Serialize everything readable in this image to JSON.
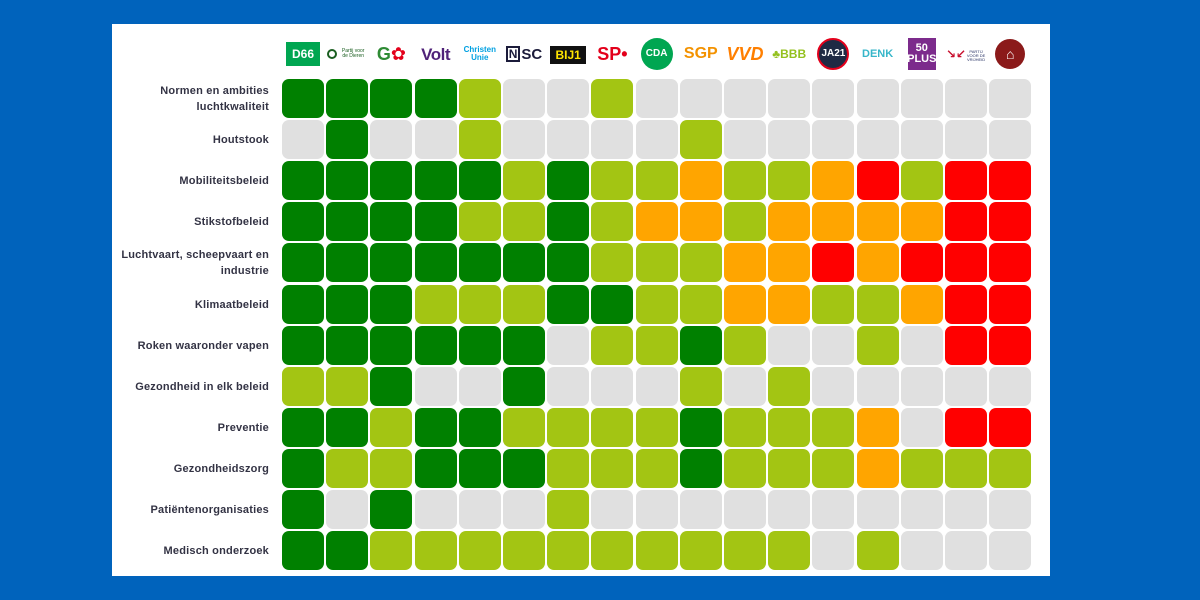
{
  "colors": {
    "background": "#0063bc",
    "panel": "#ffffff",
    "scale": {
      "0": "#e0e0e0",
      "1": "#008000",
      "2": "#a3c513",
      "3": "#ffa500",
      "4": "#ff0000"
    }
  },
  "chart_data": {
    "type": "heatmap",
    "score_legend": {
      "0": "light gray",
      "1": "dark green",
      "2": "light green",
      "3": "orange",
      "4": "red"
    },
    "parties": [
      {
        "name": "D66",
        "icon": "d66-logo",
        "text": "D66"
      },
      {
        "name": "Partij voor de Dieren",
        "icon": "pvdd-logo",
        "text": "Partij voor de Dieren"
      },
      {
        "name": "GroenLinks-PvdA",
        "icon": "groenlinks-pvda-logo",
        "text": "G"
      },
      {
        "name": "Volt",
        "icon": "volt-logo",
        "text": "Volt"
      },
      {
        "name": "ChristenUnie",
        "icon": "christenunie-logo",
        "text": "Christen\nUnie"
      },
      {
        "name": "NSC",
        "icon": "nsc-logo",
        "text": "SC"
      },
      {
        "name": "BIJ1",
        "icon": "bij1-logo",
        "text": "BIJ1"
      },
      {
        "name": "SP",
        "icon": "sp-logo",
        "text": "SP"
      },
      {
        "name": "CDA",
        "icon": "cda-logo",
        "text": "CDA"
      },
      {
        "name": "SGP",
        "icon": "sgp-logo",
        "text": "SGP"
      },
      {
        "name": "VVD",
        "icon": "vvd-logo",
        "text": "VVD"
      },
      {
        "name": "BBB",
        "icon": "bbb-logo",
        "text": "BBB"
      },
      {
        "name": "JA21",
        "icon": "ja21-logo",
        "text": "JA21"
      },
      {
        "name": "DENK",
        "icon": "denk-logo",
        "text": "DENK"
      },
      {
        "name": "50PLUS",
        "icon": "50plus-logo",
        "text": "50\nPLUS"
      },
      {
        "name": "PVV",
        "icon": "pvv-logo",
        "text": "PARTIJ VOOR DE\nVRIJHEID"
      },
      {
        "name": "FvD",
        "icon": "fvd-logo",
        "text": "⌂"
      }
    ],
    "rows": [
      {
        "label": "Normen en ambities\nluchtkwaliteit",
        "values": [
          1,
          1,
          1,
          1,
          2,
          0,
          0,
          2,
          0,
          0,
          0,
          0,
          0,
          0,
          0,
          0,
          0
        ]
      },
      {
        "label": "Houtstook",
        "values": [
          0,
          1,
          0,
          0,
          2,
          0,
          0,
          0,
          0,
          2,
          0,
          0,
          0,
          0,
          0,
          0,
          0
        ]
      },
      {
        "label": "Mobiliteitsbeleid",
        "values": [
          1,
          1,
          1,
          1,
          1,
          2,
          1,
          2,
          2,
          3,
          2,
          2,
          3,
          4,
          2,
          4,
          4
        ]
      },
      {
        "label": "Stikstofbeleid",
        "values": [
          1,
          1,
          1,
          1,
          2,
          2,
          1,
          2,
          3,
          3,
          2,
          3,
          3,
          3,
          3,
          4,
          4
        ]
      },
      {
        "label": "Luchtvaart, scheepvaart en\nindustrie",
        "values": [
          1,
          1,
          1,
          1,
          1,
          1,
          1,
          2,
          2,
          2,
          3,
          3,
          4,
          3,
          4,
          4,
          4
        ]
      },
      {
        "label": "Klimaatbeleid",
        "values": [
          1,
          1,
          1,
          2,
          2,
          2,
          1,
          1,
          2,
          2,
          3,
          3,
          2,
          2,
          3,
          4,
          4
        ]
      },
      {
        "label": "Roken waaronder vapen",
        "values": [
          1,
          1,
          1,
          1,
          1,
          1,
          0,
          2,
          2,
          1,
          2,
          0,
          0,
          2,
          0,
          4,
          4
        ]
      },
      {
        "label": "Gezondheid in elk beleid",
        "values": [
          2,
          2,
          1,
          0,
          0,
          1,
          0,
          0,
          0,
          2,
          0,
          2,
          0,
          0,
          0,
          0,
          0
        ]
      },
      {
        "label": "Preventie",
        "values": [
          1,
          1,
          2,
          1,
          1,
          2,
          2,
          2,
          2,
          1,
          2,
          2,
          2,
          3,
          0,
          4,
          4
        ]
      },
      {
        "label": "Gezondheidszorg",
        "values": [
          1,
          2,
          2,
          1,
          1,
          1,
          2,
          2,
          2,
          1,
          2,
          2,
          2,
          3,
          2,
          2,
          2
        ]
      },
      {
        "label": "Patiëntenorganisaties",
        "values": [
          1,
          0,
          1,
          0,
          0,
          0,
          2,
          0,
          0,
          0,
          0,
          0,
          0,
          0,
          0,
          0,
          0
        ]
      },
      {
        "label": "Medisch onderzoek",
        "values": [
          1,
          1,
          2,
          2,
          2,
          2,
          2,
          2,
          2,
          2,
          2,
          2,
          0,
          2,
          0,
          0,
          0
        ]
      }
    ]
  }
}
